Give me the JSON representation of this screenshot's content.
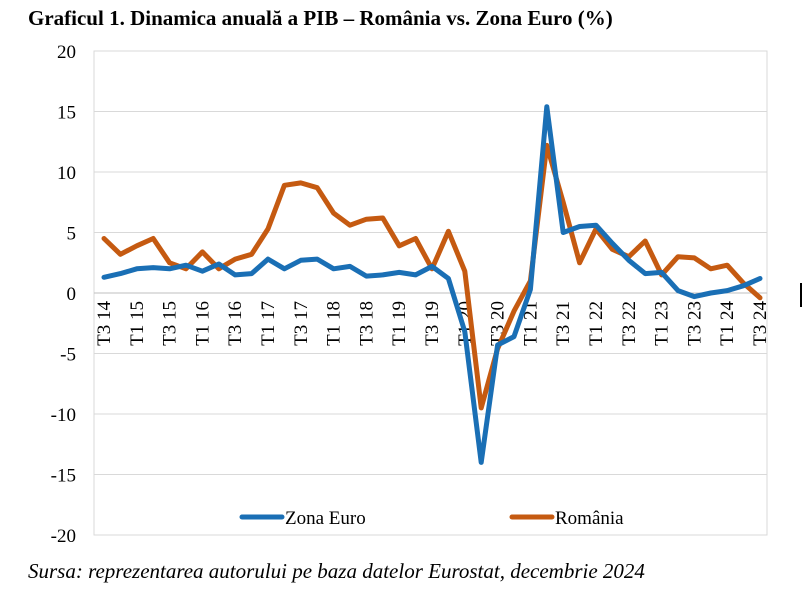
{
  "title": "Graficul 1. Dinamica anuală a PIB – România vs. Zona Euro (%)",
  "source": "Sursa: reprezentarea autorului pe baza datelor Eurostat, decembrie 2024",
  "colors": {
    "zona_euro": "#1a6fb5",
    "romania": "#c55a11",
    "grid": "#d9d9d9",
    "axis": "#bfbfbf"
  },
  "chart_data": {
    "type": "line",
    "title": "Graficul 1. Dinamica anuală a PIB – România vs. Zona Euro (%)",
    "xlabel": "",
    "ylabel": "",
    "ylim": [
      -20,
      20
    ],
    "yticks": [
      20,
      15,
      10,
      5,
      0,
      -5,
      -10,
      -15,
      -20
    ],
    "grid": true,
    "legend_position": "bottom",
    "categories": [
      "T3 14",
      "T4 14",
      "T1 15",
      "T2 15",
      "T3 15",
      "T4 15",
      "T1 16",
      "T2 16",
      "T3 16",
      "T4 16",
      "T1 17",
      "T2 17",
      "T3 17",
      "T4 17",
      "T1 18",
      "T2 18",
      "T3 18",
      "T4 18",
      "T1 19",
      "T2 19",
      "T3 19",
      "T4 19",
      "T1 20",
      "T2 20",
      "T3 20",
      "T4 20",
      "T1 21",
      "T2 21",
      "T3 21",
      "T4 21",
      "T1 22",
      "T2 22",
      "T3 22",
      "T4 22",
      "T1 23",
      "T2 23",
      "T3 23",
      "T4 23",
      "T1 24",
      "T2 24",
      "T3 24"
    ],
    "tick_labels": [
      "T3 14",
      "T1 15",
      "T3 15",
      "T1 16",
      "T3 16",
      "T1 17",
      "T3 17",
      "T1 18",
      "T3 18",
      "T1 19",
      "T3 19",
      "T1 20",
      "T3 20",
      "T1 21",
      "T3 21",
      "T1 22",
      "T3 22",
      "T1 23",
      "T3 23",
      "T1 24",
      "T3 24"
    ],
    "series": [
      {
        "name": "Zona Euro",
        "values": [
          1.3,
          1.6,
          2.0,
          2.1,
          2.0,
          2.3,
          1.8,
          2.4,
          1.5,
          1.6,
          2.8,
          2.0,
          2.7,
          2.8,
          2.0,
          2.2,
          1.4,
          1.5,
          1.7,
          1.5,
          2.2,
          1.2,
          -3.2,
          -14.0,
          -4.3,
          -3.6,
          0.3,
          15.4,
          5.0,
          5.5,
          5.6,
          4.1,
          2.7,
          1.6,
          1.7,
          0.2,
          -0.3,
          0.0,
          0.2,
          0.6,
          1.2
        ]
      },
      {
        "name": "România",
        "values": [
          4.5,
          3.2,
          3.9,
          4.5,
          2.5,
          2.0,
          3.4,
          2.0,
          2.8,
          3.2,
          5.3,
          8.9,
          9.1,
          8.7,
          6.6,
          5.6,
          6.1,
          6.2,
          3.9,
          4.5,
          2.0,
          5.1,
          1.8,
          -9.5,
          -4.6,
          -1.5,
          1.0,
          12.2,
          7.5,
          2.5,
          5.3,
          3.6,
          3.0,
          4.3,
          1.5,
          3.0,
          2.9,
          2.0,
          2.3,
          0.8,
          -0.4
        ]
      }
    ]
  }
}
